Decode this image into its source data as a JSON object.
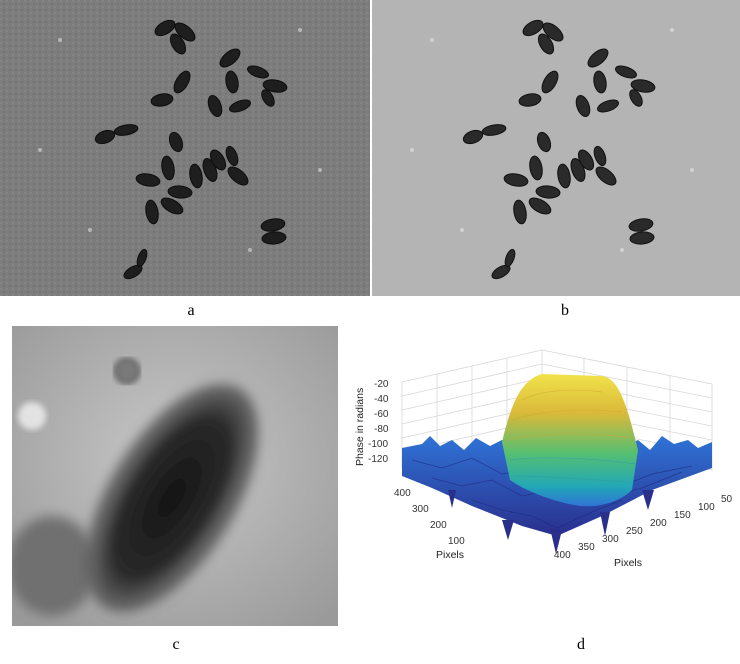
{
  "panels": {
    "a": {
      "label": "a"
    },
    "b": {
      "label": "b"
    },
    "c": {
      "label": "c"
    },
    "d": {
      "label": "d"
    }
  },
  "surface_plot": {
    "zlabel": "Phase in radians",
    "xlabel": "Pixels",
    "ylabel": "Pixels",
    "z_ticks": [
      "-20",
      "-40",
      "-60",
      "-80",
      "-100",
      "-120"
    ],
    "y_ticks": [
      "400",
      "300",
      "200",
      "100"
    ],
    "x_ticks": [
      "400",
      "350",
      "300",
      "250",
      "200",
      "150",
      "100",
      "50"
    ],
    "colormap": [
      "#2a2f8c",
      "#2f73d6",
      "#22a7b6",
      "#55bf72",
      "#d9b93a",
      "#f1e24a"
    ]
  }
}
